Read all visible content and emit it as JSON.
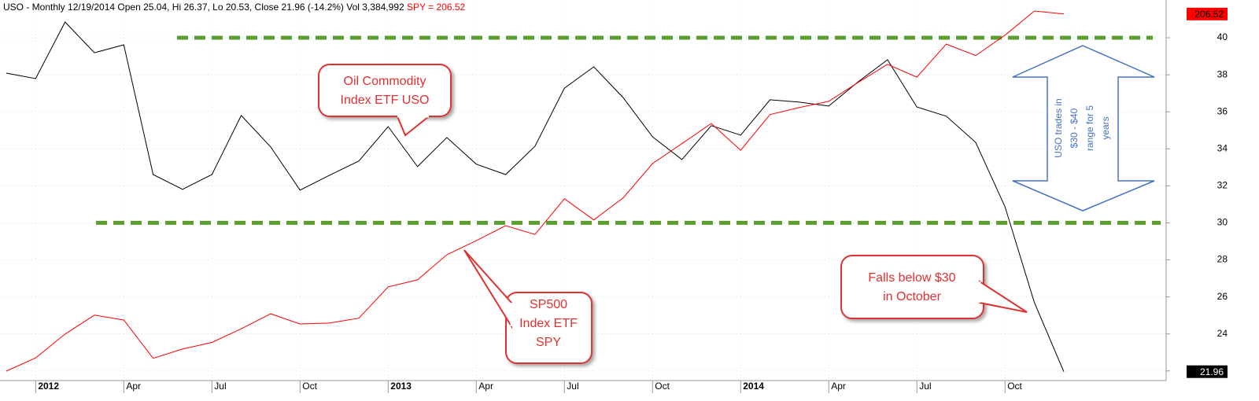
{
  "header": {
    "text": "USO - Monthly 12/19/2014 Open 25.04, Hi 26.37, Lo 20.53, Close 21.96 (-14.2%) Vol 3,384,992",
    "spy_text": "SPY = 206.52"
  },
  "chart_data": {
    "type": "line",
    "categories": [
      null,
      "2012",
      null,
      null,
      "Apr",
      null,
      null,
      "Jul",
      null,
      null,
      "Oct",
      null,
      null,
      "2013",
      null,
      null,
      "Apr",
      null,
      null,
      "Jul",
      null,
      null,
      "Oct",
      null,
      null,
      "2014",
      null,
      null,
      "Apr",
      null,
      null,
      "Jul",
      null,
      null,
      "Oct",
      null,
      null
    ],
    "series": [
      {
        "name": "USO",
        "color": "#000000",
        "values": [
          38.09,
          37.79,
          40.85,
          39.19,
          39.62,
          32.61,
          31.81,
          32.61,
          35.8,
          34.1,
          31.77,
          32.57,
          33.34,
          35.2,
          33.04,
          34.61,
          33.17,
          32.61,
          34.14,
          37.28,
          38.43,
          36.77,
          34.65,
          33.42,
          35.25,
          34.74,
          36.65,
          36.52,
          36.31,
          37.62,
          38.81,
          36.26,
          35.76,
          34.35,
          30.87,
          25.7,
          21.96
        ]
      },
      {
        "name": "SPY",
        "color": "#ff0000",
        "axis": "y2",
        "values": [
          125.5,
          128.5,
          133.9,
          138.2,
          137.1,
          128.4,
          130.5,
          132.0,
          135.1,
          138.5,
          136.2,
          136.4,
          137.5,
          144.6,
          146.2,
          151.9,
          155.1,
          158.5,
          156.5,
          164.6,
          159.8,
          164.8,
          172.6,
          177.1,
          181.7,
          175.6,
          183.7,
          185.3,
          186.7,
          191.0,
          195.1,
          192.2,
          199.7,
          197.1,
          201.7,
          207.2,
          206.52
        ]
      }
    ],
    "ylim": [
      20.8,
      42.04
    ],
    "yticks": [
      22,
      24,
      26,
      28,
      30,
      32,
      34,
      36,
      38,
      40
    ],
    "y2lim": [
      120.5,
      209.7
    ],
    "grid": true,
    "hlines": {
      "color": "#5a9e2f",
      "values": [
        40,
        30
      ]
    },
    "annotations": [
      {
        "lines": [
          "Oil Commodity",
          "Index ETF USO"
        ]
      },
      {
        "lines": [
          "SP500",
          "Index ETF",
          "SPY"
        ]
      },
      {
        "lines": [
          "Falls below $30",
          "in October"
        ]
      },
      {
        "lines": [
          "USO trades in",
          "$30 - $40",
          "range for 5",
          "years"
        ]
      }
    ]
  }
}
